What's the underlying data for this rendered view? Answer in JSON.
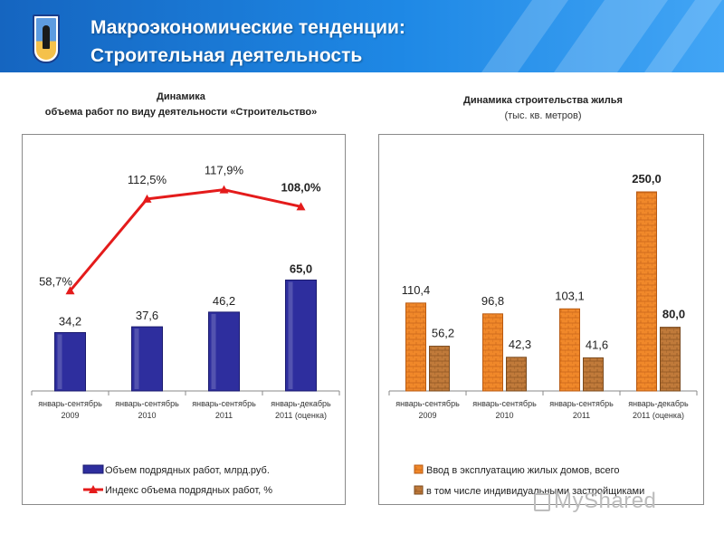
{
  "header": {
    "title_line1": "Макроэкономические тенденции:",
    "title_line2": "Строительная деятельность",
    "accent_color": "#1e88e5",
    "emblem_icon": "regional-coat-of-arms"
  },
  "chart_data": [
    {
      "type": "bar+line",
      "title_line1": "Динамика",
      "title_line2": "объема работ по виду деятельности «Строительство»",
      "categories": [
        [
          "январь-сентябрь",
          "2009"
        ],
        [
          "январь-сентябрь",
          "2010"
        ],
        [
          "январь-сентябрь",
          "2011"
        ],
        [
          "январь-декабрь",
          "2011 (оценка)"
        ]
      ],
      "series": [
        {
          "name": "Объем подрядных работ, млрд.руб.",
          "kind": "bar",
          "color": "#2e2e9e",
          "values": [
            34.2,
            37.6,
            46.2,
            65.0
          ],
          "labels": [
            "34,2",
            "37,6",
            "46,2",
            "65,0"
          ],
          "highlight_last": true
        },
        {
          "name": "Индекс объема подрядных работ, %",
          "kind": "line",
          "color": "#e41b1b",
          "values": [
            58.7,
            112.5,
            117.9,
            108.0
          ],
          "labels": [
            "58,7%",
            "112,5%",
            "117,9%",
            "108,0%"
          ],
          "highlight_last": true
        }
      ],
      "bar_ylim": [
        0,
        140
      ],
      "line_ylim": [
        0,
        140
      ],
      "highlight_color": "#4472c4",
      "grid": false,
      "legend_position": "bottom"
    },
    {
      "type": "bar",
      "title_line1": "Динамика строительства жилья",
      "title_line2": "(тыс. кв. метров)",
      "categories": [
        [
          "январь-сентябрь",
          "2009"
        ],
        [
          "январь-сентябрь",
          "2010"
        ],
        [
          "январь-сентябрь",
          "2011"
        ],
        [
          "январь-декабрь",
          "2011 (оценка)"
        ]
      ],
      "series": [
        {
          "name": "Ввод в эксплуатацию жилых домов, всего",
          "color": "#f0882a",
          "values": [
            110.4,
            96.8,
            103.1,
            250.0
          ],
          "labels": [
            "110,4",
            "96,8",
            "103,1",
            "250,0"
          ],
          "highlight_last": true
        },
        {
          "name": "в том числе индивидуальными застройщиками",
          "color": "#c07a3a",
          "values": [
            56.2,
            42.3,
            41.6,
            80.0
          ],
          "labels": [
            "56,2",
            "42,3",
            "41,6",
            "80,0"
          ],
          "highlight_last": true
        }
      ],
      "ylim": [
        0,
        300
      ],
      "highlight_color": "#4472c4",
      "grid": false,
      "legend_position": "bottom"
    }
  ],
  "watermark": {
    "text": "MyShared",
    "icon": "presentation-board-icon"
  }
}
